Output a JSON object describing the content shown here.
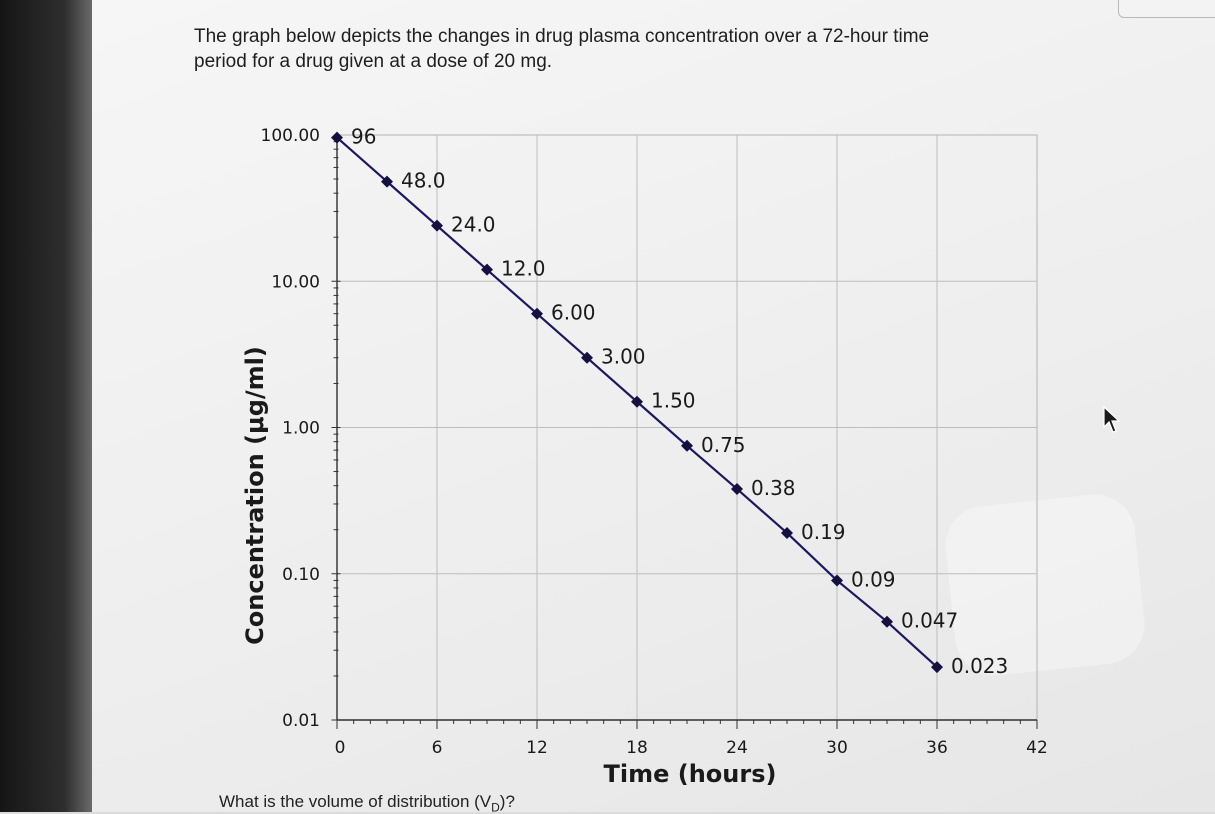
{
  "question": {
    "line1": "The graph below depicts the changes in drug plasma concentration over a 72-hour time",
    "line2": "period for a drug given at a dose of 20 mg."
  },
  "footer_question": {
    "prefix": "What is the volume of distribution (V",
    "subscript": "D",
    "suffix": ")?"
  },
  "chart_data": {
    "type": "scatter",
    "title": "",
    "xlabel": "Time (hours)",
    "ylabel": "Concentration (μg/ml)",
    "y_scale": "log",
    "xlim": [
      0,
      42
    ],
    "ylim": [
      0.01,
      100
    ],
    "x_ticks": [
      "0",
      "6",
      "12",
      "18",
      "24",
      "30",
      "36",
      "42"
    ],
    "y_ticks": [
      "100.00",
      "10.00",
      "1.00",
      "0.10",
      "0.01"
    ],
    "grid": true,
    "series": [
      {
        "x": [
          0,
          3,
          6,
          9,
          12,
          15,
          18,
          21,
          24,
          27,
          30,
          33,
          36
        ],
        "y": [
          96,
          48.0,
          24.0,
          12.0,
          6.0,
          3.0,
          1.5,
          0.75,
          0.38,
          0.19,
          0.09,
          0.047,
          0.023
        ],
        "labels": [
          "96",
          "48.0",
          "24.0",
          "12.0",
          "6.00",
          "3.00",
          "1.50",
          "0.75",
          "0.38",
          "0.19",
          "0.09",
          "0.047",
          "0.023"
        ]
      }
    ],
    "colors": {
      "line": "#1b1860",
      "marker": "#141040",
      "grid": "#bdbdbd",
      "axis": "#333333"
    }
  }
}
